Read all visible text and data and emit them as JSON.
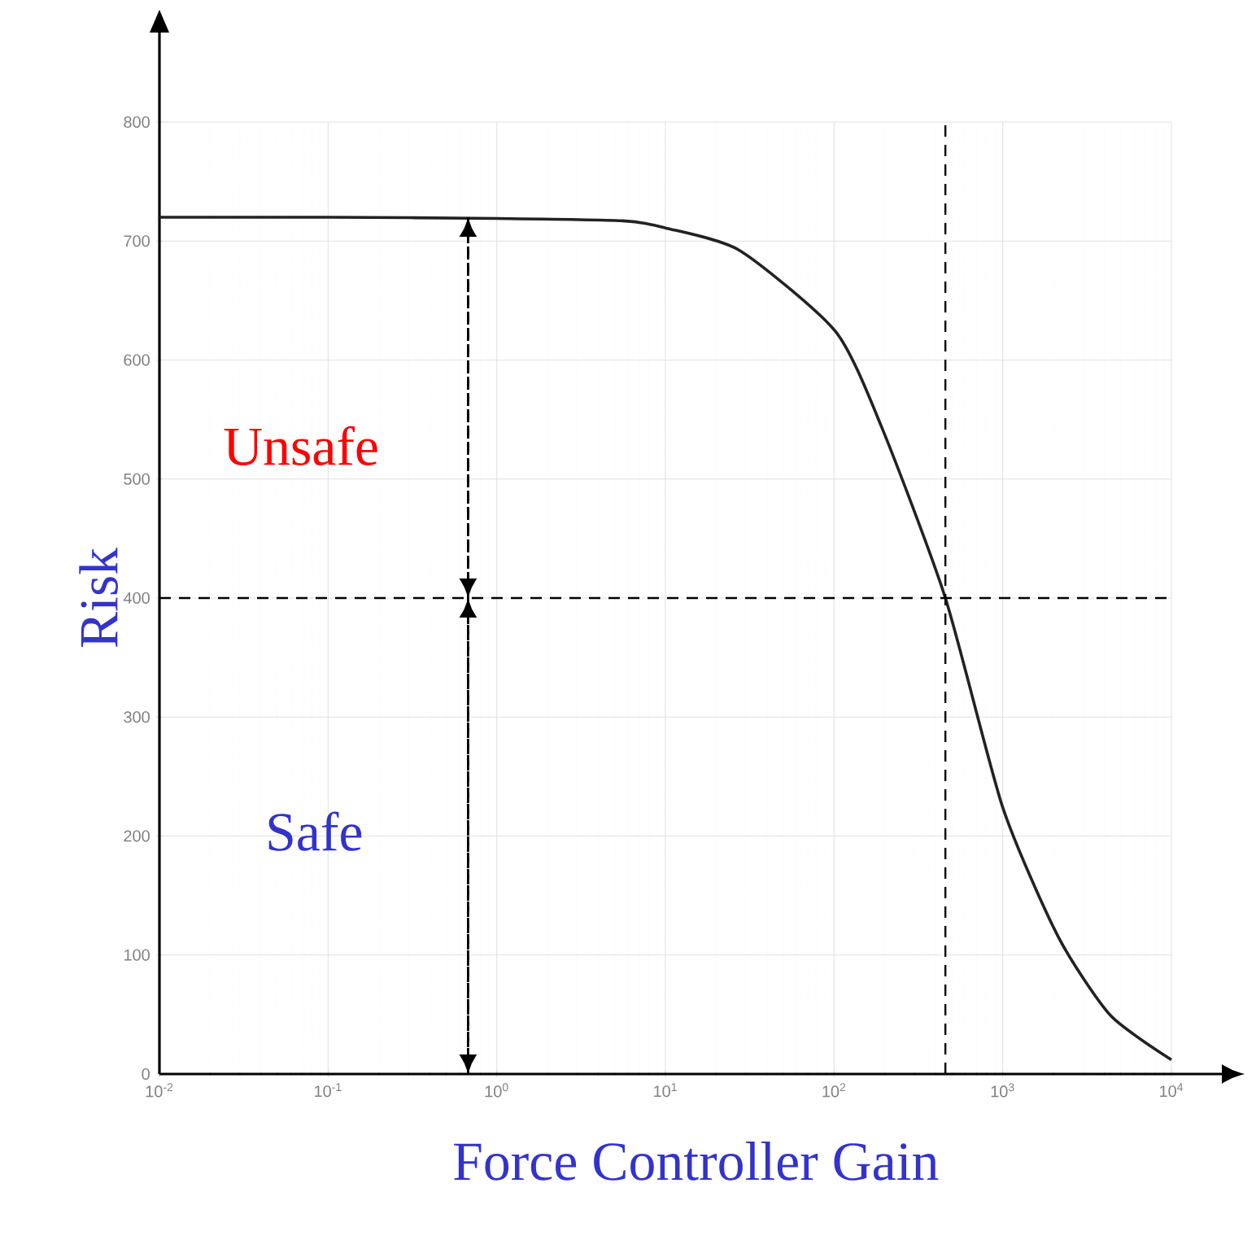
{
  "chart_data": {
    "type": "line",
    "xlabel": "Force Controller Gain",
    "ylabel": "Risk",
    "x": [
      0.01,
      0.1,
      1,
      5.6,
      10,
      27.6,
      102,
      191,
      457,
      1000,
      2140,
      4370,
      10000
    ],
    "values": [
      720,
      720,
      719,
      717,
      711,
      692,
      624,
      544,
      400,
      224,
      115,
      49,
      12
    ],
    "color": "#222222",
    "log": "x",
    "grid": true,
    "marker": "none",
    "line_style": "solid",
    "xlim": [
      0.01,
      10000
    ],
    "ylim": [
      0,
      800
    ],
    "xticks": [
      {
        "value": 0.01,
        "label": "10$^{-2}$"
      },
      {
        "value": 0.1,
        "label": "10$^{-1}$"
      },
      {
        "value": 1,
        "label": "10$^{0}$"
      },
      {
        "value": 10,
        "label": "10$^{1}$"
      },
      {
        "value": 100,
        "label": "10$^{2}$"
      },
      {
        "value": 1000,
        "label": "10$^{3}$"
      },
      {
        "value": 10000,
        "label": "10$^{4}$"
      }
    ],
    "yticks": [
      0,
      100,
      200,
      300,
      400,
      500,
      600,
      700,
      800
    ],
    "ref_lines": [
      {
        "axis": "y",
        "value": 400,
        "color": "#000000",
        "line_style": "dashed"
      },
      {
        "axis": "x",
        "value": 457,
        "color": "#000000",
        "line_style": "dashed"
      }
    ],
    "annotations": [
      "Unsafe",
      "Safe"
    ]
  }
}
